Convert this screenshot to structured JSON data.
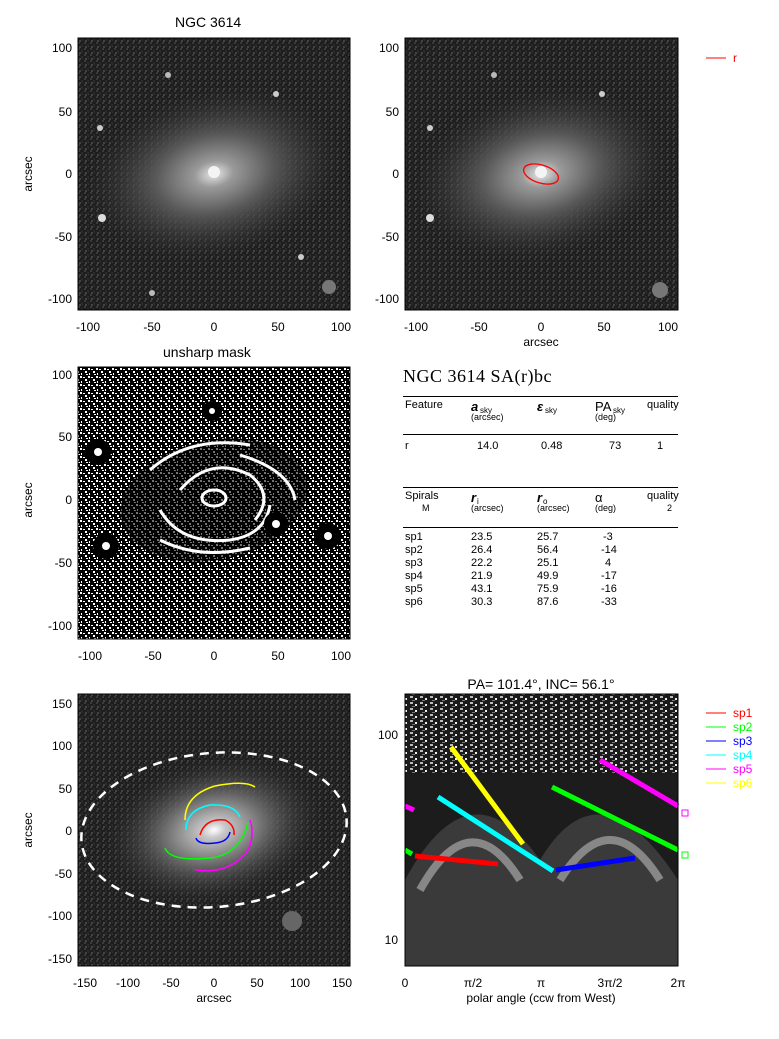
{
  "panels": {
    "top_left_title": "NGC 3614",
    "mid_left_title": "unsharp mask",
    "y_label": "arcsec",
    "x_label": "arcsec",
    "legend_r": "r",
    "axis_ticks_small": [
      "-100",
      "-50",
      "0",
      "50",
      "100"
    ],
    "axis_ticks_large": [
      "-150",
      "-100",
      "-50",
      "0",
      "50",
      "100",
      "150"
    ],
    "ellipse_color": "#ff0000"
  },
  "table": {
    "heading": "NGC 3614  SA(r)bc",
    "feature_header": {
      "col1": "Feature",
      "col2": "a",
      "col2_sub": "sky",
      "col2_unit": "(arcsec)",
      "col3": "ε",
      "col3_sub": "sky",
      "col4": "PA",
      "col4_sub": "sky",
      "col4_unit": "(deg)",
      "col5": "quality"
    },
    "feature_rows": [
      {
        "name": "r",
        "a": "14.0",
        "eps": "0.48",
        "pa": "73",
        "quality": "1"
      }
    ],
    "spiral_header": {
      "col1": "Spirals",
      "col1_sub": "M",
      "col2": "r",
      "col2_sub": "i",
      "col2_unit": "(arcsec)",
      "col3": "r",
      "col3_sub": "o",
      "col3_unit": "(arcsec)",
      "col4": "α",
      "col4_unit": "(deg)",
      "col5": "quality",
      "col5_sub": "2"
    },
    "spiral_rows": [
      {
        "name": "sp1",
        "ri": "23.5",
        "ro": "25.7",
        "alpha": "-3"
      },
      {
        "name": "sp2",
        "ri": "26.4",
        "ro": "56.4",
        "alpha": "-14"
      },
      {
        "name": "sp3",
        "ri": "22.2",
        "ro": "25.1",
        "alpha": "4"
      },
      {
        "name": "sp4",
        "ri": "21.9",
        "ro": "49.9",
        "alpha": "-17"
      },
      {
        "name": "sp5",
        "ri": "43.1",
        "ro": "75.9",
        "alpha": "-16"
      },
      {
        "name": "sp6",
        "ri": "30.3",
        "ro": "87.6",
        "alpha": "-33"
      }
    ]
  },
  "polar_plot": {
    "title": "PA= 101.4°, INC=  56.1°",
    "xlabel": "polar angle (ccw from West)",
    "x_ticks": [
      "0",
      "π/2",
      "π",
      "3π/2",
      "2π"
    ],
    "y_ticks": [
      "100",
      "10"
    ]
  },
  "spiral_legend": [
    {
      "name": "sp1",
      "color": "#ff0000"
    },
    {
      "name": "sp2",
      "color": "#00ff00"
    },
    {
      "name": "sp3",
      "color": "#0000ff"
    },
    {
      "name": "sp4",
      "color": "#00ffff"
    },
    {
      "name": "sp5",
      "color": "#ff00ff"
    },
    {
      "name": "sp6",
      "color": "#ffff00"
    }
  ]
}
